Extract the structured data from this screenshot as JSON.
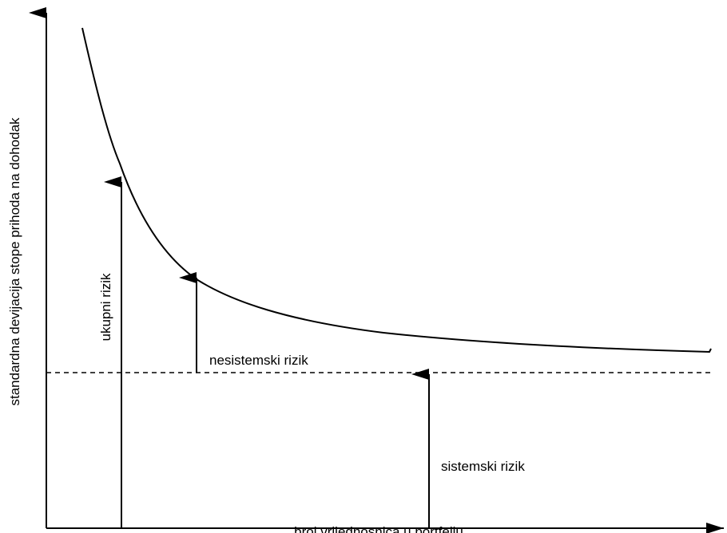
{
  "diagram": {
    "x_axis_label": "broj vrijednosnica u portfelju",
    "y_axis_label": "standardna devijacija stope prihoda na dohodak",
    "annotations": {
      "total_risk": "ukupni rizik",
      "unsystematic_risk": "nesistemski rizik",
      "systematic_risk": "sistemski rizik"
    }
  },
  "colors": {
    "ink": "#000000",
    "background": "#ffffff"
  }
}
